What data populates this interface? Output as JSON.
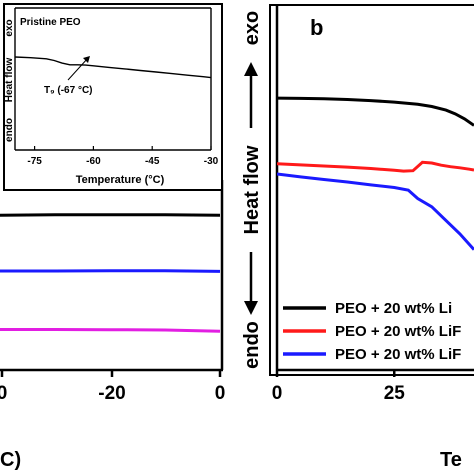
{
  "chart_data": [
    {
      "type": "line",
      "panel": "inset",
      "title": "Pristine PEO",
      "xlabel": "Temperature (°C)",
      "ylabel": "Heat flow",
      "y_top_label": "exo",
      "y_bottom_label": "endo",
      "annotation": "T₉ (-67 °C)",
      "x_ticks": [
        "-75",
        "-60",
        "-45",
        "-30"
      ],
      "xlim": [
        -80,
        -30
      ],
      "ylim": [
        0,
        1
      ],
      "grid": false,
      "series": [
        {
          "color": "#000000",
          "x": [
            -80,
            -76,
            -72,
            -70,
            -68,
            -66,
            -64,
            -62,
            -60,
            -56,
            -52,
            -48,
            -44,
            -40,
            -36,
            -32,
            -30
          ],
          "y": [
            0.655,
            0.65,
            0.642,
            0.63,
            0.612,
            0.6,
            0.6,
            0.598,
            0.593,
            0.582,
            0.571,
            0.56,
            0.549,
            0.538,
            0.527,
            0.516,
            0.51
          ]
        }
      ]
    },
    {
      "type": "line",
      "panel": "a",
      "xlabel": "C)",
      "x_ticks": [
        "0",
        "-20",
        "0"
      ],
      "ylim": [
        0,
        1
      ],
      "grid": false,
      "series": [
        {
          "color": "#000000",
          "x": [
            -40,
            -30,
            -20,
            -10,
            0
          ],
          "y": [
            0.86,
            0.862,
            0.863,
            0.862,
            0.86
          ]
        },
        {
          "color": "#1a1aff",
          "x": [
            -40,
            -30,
            -20,
            -10,
            0
          ],
          "y": [
            0.55,
            0.55,
            0.551,
            0.551,
            0.548
          ]
        },
        {
          "color": "#e21ee2",
          "x": [
            -40,
            -30,
            -20,
            -10,
            0
          ],
          "y": [
            0.225,
            0.225,
            0.224,
            0.222,
            0.215
          ]
        }
      ]
    },
    {
      "type": "line",
      "panel": "b",
      "panel_label": "b",
      "xlabel": "Te",
      "ylabel": "Heat flow",
      "y_top_label": "exo",
      "y_bottom_label": "endo",
      "x_ticks": [
        "0",
        "25"
      ],
      "xlim": [
        0,
        42
      ],
      "ylim": [
        0,
        1
      ],
      "grid": false,
      "legend": "bottom-right",
      "series": [
        {
          "name": "PEO + 20 wt% Li",
          "color": "#000000",
          "x": [
            0,
            5,
            10,
            15,
            20,
            25,
            30,
            33,
            36,
            38,
            40,
            42
          ],
          "y": [
            0.745,
            0.744,
            0.743,
            0.741,
            0.738,
            0.734,
            0.728,
            0.722,
            0.712,
            0.702,
            0.688,
            0.67
          ]
        },
        {
          "name": "PEO + 20 wt% LiF",
          "color": "#ff1a1a",
          "x": [
            0,
            5,
            10,
            15,
            20,
            25,
            27,
            29,
            31,
            33,
            35,
            37,
            39,
            41,
            42
          ],
          "y": [
            0.565,
            0.562,
            0.559,
            0.556,
            0.552,
            0.547,
            0.545,
            0.546,
            0.569,
            0.567,
            0.561,
            0.557,
            0.554,
            0.55,
            0.548
          ]
        },
        {
          "name": "PEO + 20 wt% LiF",
          "color": "#1a1aff",
          "x": [
            0,
            5,
            10,
            15,
            20,
            25,
            28,
            30,
            33,
            36,
            39,
            42
          ],
          "y": [
            0.537,
            0.529,
            0.522,
            0.515,
            0.507,
            0.5,
            0.493,
            0.47,
            0.447,
            0.41,
            0.373,
            0.33
          ]
        }
      ]
    }
  ]
}
